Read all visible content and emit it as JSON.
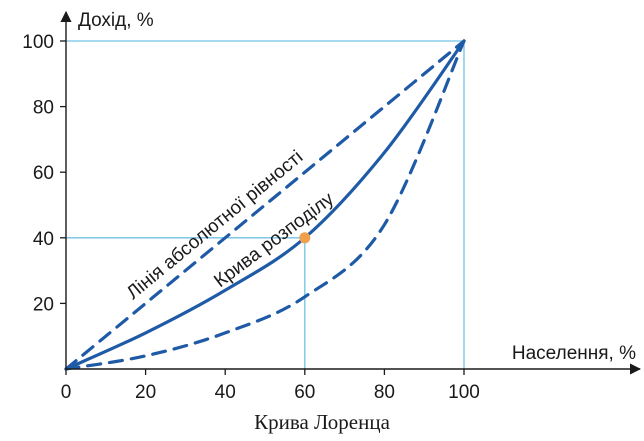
{
  "chart_data": {
    "type": "line",
    "title": "Крива Лоренца",
    "xlabel": "Населення, %",
    "ylabel": "Дохід, %",
    "xlim": [
      0,
      100
    ],
    "ylim": [
      0,
      100
    ],
    "x_ticks": [
      0,
      20,
      40,
      60,
      80,
      100
    ],
    "y_ticks": [
      20,
      40,
      60,
      80,
      100
    ],
    "series": [
      {
        "name": "Лінія абсолютної рівності",
        "style": "dashed",
        "x": [
          0,
          20,
          40,
          60,
          80,
          100
        ],
        "y": [
          0,
          20,
          40,
          60,
          80,
          100
        ]
      },
      {
        "name": "Крива розподілу",
        "style": "solid",
        "x": [
          0,
          20,
          40,
          60,
          80,
          100
        ],
        "y": [
          0,
          11,
          24,
          40,
          66,
          100
        ]
      },
      {
        "name": "",
        "style": "dashed",
        "x": [
          0,
          20,
          40,
          60,
          80,
          100
        ],
        "y": [
          0,
          4,
          11,
          22,
          44,
          100
        ]
      }
    ],
    "highlight_point": {
      "x": 60,
      "y": 40
    },
    "guide_lines": [
      {
        "x": 60,
        "y": 40
      },
      {
        "x": 100,
        "y": 100
      }
    ],
    "grid": false
  },
  "colors": {
    "curve": "#1f5aa6",
    "guide": "#6fc3e6",
    "point": "#f0a04b",
    "axis": "#1a1a1a"
  }
}
